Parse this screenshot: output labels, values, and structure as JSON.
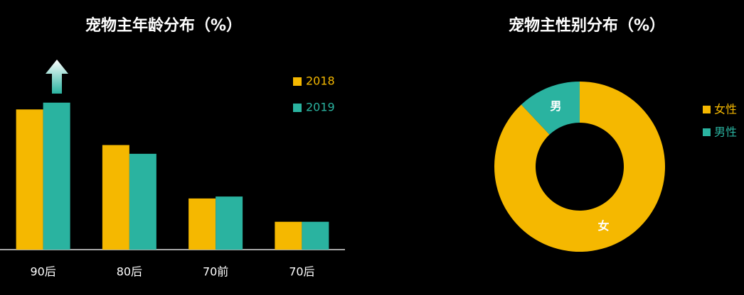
{
  "chart_data": [
    {
      "type": "bar",
      "title": "宠物主年龄分布（%）",
      "categories": [
        "90后",
        "80后",
        "70前",
        "70后"
      ],
      "series": [
        {
          "name": "2018",
          "color": "#f5b800",
          "values": [
            43.3,
            32.3,
            15.8,
            8.6
          ]
        },
        {
          "name": "2019",
          "color": "#2ab3a0",
          "values": [
            45.4,
            29.6,
            16.4,
            8.6
          ]
        }
      ],
      "ylim": [
        0,
        46
      ]
    },
    {
      "type": "donut",
      "title": "宠物主性别分布（%）",
      "categories": [
        "女性",
        "男性"
      ],
      "labels": [
        "女",
        "男"
      ],
      "values": [
        88,
        12
      ],
      "colors": [
        "#f5b800",
        "#2ab3a0"
      ]
    }
  ]
}
